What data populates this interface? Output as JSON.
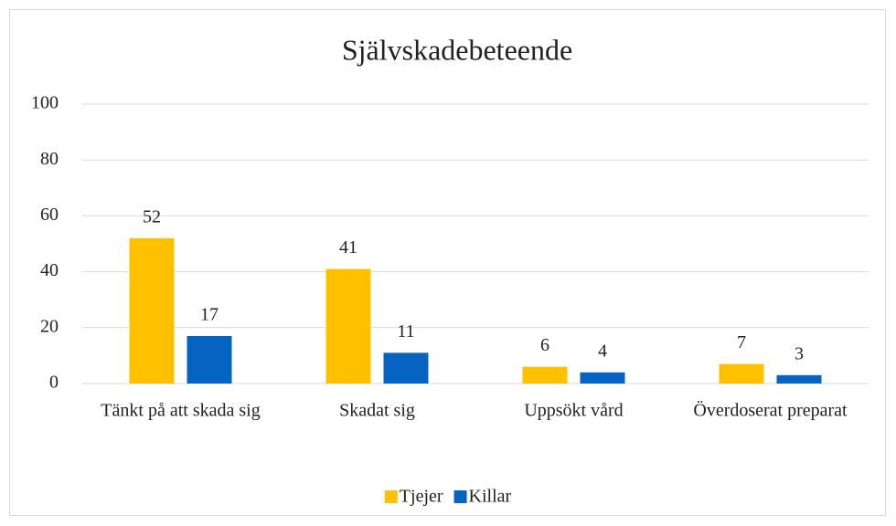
{
  "chart_data": {
    "type": "bar",
    "title": "Självskadebeteende",
    "categories": [
      "Tänkt på att skada sig",
      "Skadat sig",
      "Uppsökt vård",
      "Överdoserat preparat"
    ],
    "series": [
      {
        "name": "Tjejer",
        "color": "#ffc000",
        "values": [
          52,
          41,
          6,
          7
        ]
      },
      {
        "name": "Killar",
        "color": "#0563c1",
        "values": [
          17,
          11,
          4,
          3
        ]
      }
    ],
    "ylim": [
      0,
      100
    ],
    "yticks": [
      0,
      20,
      40,
      60,
      80,
      100
    ],
    "grid": true,
    "legend": "bottom"
  }
}
